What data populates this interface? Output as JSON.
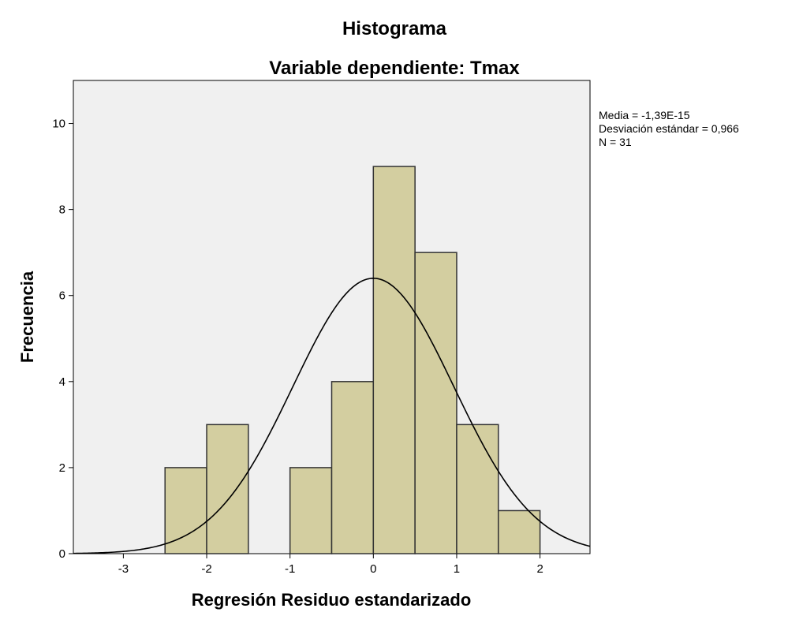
{
  "chart_data": {
    "type": "bar",
    "title": "Histograma",
    "subtitle": "Variable dependiente: Tmax",
    "xlabel": "Regresión Residuo estandarizado",
    "ylabel": "Frecuencia",
    "xlim": [
      -3.6,
      2.6
    ],
    "ylim": [
      0,
      11
    ],
    "x_ticks": [
      -3,
      -2,
      -1,
      0,
      1,
      2
    ],
    "y_ticks": [
      0,
      2,
      4,
      6,
      8,
      10
    ],
    "bin_width": 0.5,
    "bins": [
      {
        "start": -2.5,
        "end": -2.0,
        "count": 2
      },
      {
        "start": -2.0,
        "end": -1.5,
        "count": 3
      },
      {
        "start": -1.0,
        "end": -0.5,
        "count": 2
      },
      {
        "start": -0.5,
        "end": 0.0,
        "count": 4
      },
      {
        "start": 0.0,
        "end": 0.5,
        "count": 9
      },
      {
        "start": 0.5,
        "end": 1.0,
        "count": 7
      },
      {
        "start": 1.0,
        "end": 1.5,
        "count": 3
      },
      {
        "start": 1.5,
        "end": 2.0,
        "count": 1
      }
    ],
    "normal_curve": {
      "mean": -1.39e-15,
      "sd": 0.966,
      "n": 31
    },
    "stats_lines": [
      "Media = -1,39E-15",
      "Desviación estándar = 0,966",
      "N = 31"
    ],
    "colors": {
      "plot_background": "#f0f0f0",
      "bar_fill": "#d3cea0",
      "bar_stroke": "#333333",
      "curve": "#000000"
    },
    "grid": false
  }
}
